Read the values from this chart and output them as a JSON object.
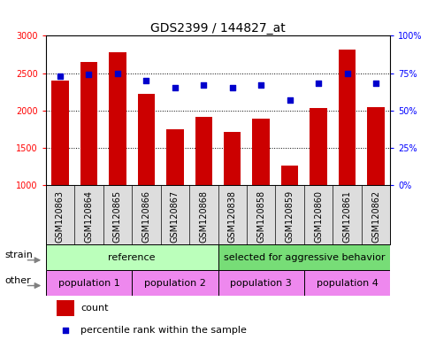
{
  "title": "GDS2399 / 144827_at",
  "categories": [
    "GSM120863",
    "GSM120864",
    "GSM120865",
    "GSM120866",
    "GSM120867",
    "GSM120868",
    "GSM120838",
    "GSM120858",
    "GSM120859",
    "GSM120860",
    "GSM120861",
    "GSM120862"
  ],
  "counts": [
    2400,
    2650,
    2780,
    2220,
    1750,
    1920,
    1710,
    1890,
    1260,
    2030,
    2820,
    2050
  ],
  "percentiles": [
    73,
    74,
    75,
    70,
    65,
    67,
    65,
    67,
    57,
    68,
    75,
    68
  ],
  "ylim_left": [
    1000,
    3000
  ],
  "ylim_right": [
    0,
    100
  ],
  "yticks_left": [
    1000,
    1500,
    2000,
    2500,
    3000
  ],
  "yticks_right": [
    0,
    25,
    50,
    75,
    100
  ],
  "bar_color": "#cc0000",
  "dot_color": "#0000cc",
  "grid_color": "#000000",
  "xtick_bg_color": "#dddddd",
  "strain_ref_color": "#bbffbb",
  "strain_agg_color": "#77dd77",
  "pop_color": "#ee88ee",
  "strain_row_label": "strain",
  "other_row_label": "other",
  "legend_count_label": "count",
  "legend_pct_label": "percentile rank within the sample",
  "title_fontsize": 10,
  "tick_fontsize": 7,
  "annotation_fontsize": 8,
  "legend_fontsize": 8
}
